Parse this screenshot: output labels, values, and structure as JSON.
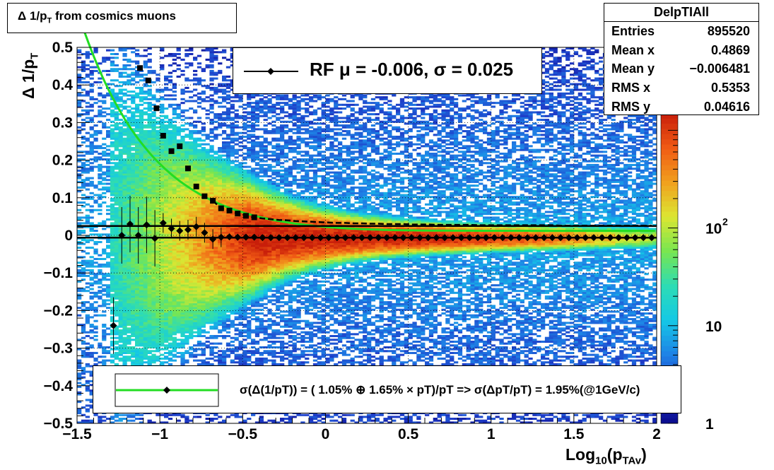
{
  "title": "Δ 1/p",
  "title_sub": "T",
  "title_tail": " from cosmics muons",
  "stats": {
    "name": "DelpTIAll",
    "rows": [
      {
        "label": "Entries",
        "value": "895520"
      },
      {
        "label": "Mean x",
        "value": "0.4869"
      },
      {
        "label": "Mean y",
        "value": "−0.006481"
      },
      {
        "label": "RMS x",
        "value": "0.5353"
      },
      {
        "label": "RMS y",
        "value": "0.04616"
      }
    ]
  },
  "rf_legend": "RF μ = -0.006, σ =   0.025",
  "fit_legend": "σ(Δ(1/pT)) = ( 1.05% ⊕  1.65% × pT)/pT => σ(ΔpT/pT) =  1.95%(@1GeV/c)",
  "xlabel_main": "Log",
  "xlabel_sub1": "10",
  "xlabel_mid": "(p",
  "xlabel_sub2": "TAv",
  "xlabel_end": ")",
  "ylabel_main": "Δ 1/p",
  "ylabel_sub": "T",
  "colors": {
    "fit_curve": "#22dd22",
    "markers": "#000000",
    "palette": [
      "#0a0a8c",
      "#1e3cc8",
      "#1e82e6",
      "#14c8e6",
      "#2ddcb4",
      "#78e650",
      "#dce632",
      "#f0a01e",
      "#f05a14",
      "#c81e0a"
    ]
  },
  "chart_data": {
    "type": "heatmap",
    "xlim": [
      -1.5,
      2.0
    ],
    "ylim": [
      -0.5,
      0.5
    ],
    "x_ticks": [
      "−1.5",
      "−1",
      "−0.5",
      "0",
      "0.5",
      "1",
      "1.5",
      "2"
    ],
    "y_ticks": [
      "−0.5",
      "−0.4",
      "−0.3",
      "−0.2",
      "−0.1",
      "0",
      "0.1",
      "0.2",
      "0.3",
      "0.4",
      "0.5"
    ],
    "z_scale": "log",
    "zlim": [
      1,
      1500
    ],
    "z_ticks": [
      "1",
      "10",
      "10^2"
    ],
    "grid": true,
    "rms_profile": {
      "marker": "square",
      "x": [
        -1.12,
        -1.07,
        -1.02,
        -0.98,
        -0.93,
        -0.88,
        -0.83,
        -0.78,
        -0.73,
        -0.68,
        -0.63,
        -0.58,
        -0.53,
        -0.48,
        -0.43,
        -0.38,
        -0.33,
        -0.28,
        -0.23,
        -0.18,
        -0.13,
        -0.08,
        -0.03,
        0.02,
        0.07,
        0.12,
        0.17,
        0.22,
        0.27,
        0.32,
        0.37,
        0.42,
        0.47,
        0.52,
        0.57,
        0.62,
        0.67,
        0.72,
        0.77,
        0.82,
        0.87,
        0.92,
        0.97,
        1.02,
        1.07,
        1.12,
        1.17,
        1.22,
        1.27,
        1.32,
        1.37,
        1.42,
        1.47,
        1.52,
        1.57,
        1.62,
        1.67,
        1.72,
        1.77,
        1.82,
        1.87,
        1.92,
        1.97
      ],
      "y": [
        0.445,
        0.412,
        0.338,
        0.265,
        0.224,
        0.237,
        0.178,
        0.13,
        0.104,
        0.092,
        0.072,
        0.066,
        0.058,
        0.052,
        0.048,
        0.045,
        0.043,
        0.041,
        0.04,
        0.038,
        0.037,
        0.036,
        0.035,
        0.034,
        0.033,
        0.033,
        0.032,
        0.032,
        0.031,
        0.031,
        0.03,
        0.03,
        0.03,
        0.029,
        0.029,
        0.029,
        0.028,
        0.028,
        0.028,
        0.028,
        0.028,
        0.027,
        0.027,
        0.027,
        0.027,
        0.027,
        0.027,
        0.027,
        0.027,
        0.027,
        0.027,
        0.026,
        0.026,
        0.026,
        0.026,
        0.026,
        0.026,
        0.026,
        0.026,
        0.026,
        0.026,
        0.026,
        0.026
      ]
    },
    "mean_profile": {
      "marker": "diamond",
      "x": [
        -1.28,
        -1.23,
        -1.18,
        -1.13,
        -1.08,
        -1.03,
        -0.98,
        -0.93,
        -0.88,
        -0.83,
        -0.78,
        -0.73,
        -0.68,
        -0.63,
        -0.58,
        -0.53,
        -0.48,
        -0.43,
        -0.38,
        -0.33,
        -0.28,
        -0.23,
        -0.18,
        -0.13,
        -0.08,
        -0.03,
        0.02,
        0.07,
        0.12,
        0.17,
        0.22,
        0.27,
        0.32,
        0.37,
        0.42,
        0.47,
        0.52,
        0.57,
        0.62,
        0.67,
        0.72,
        0.77,
        0.82,
        0.87,
        0.92,
        0.97,
        1.02,
        1.07,
        1.12,
        1.17,
        1.22,
        1.27,
        1.32,
        1.37,
        1.42,
        1.47,
        1.52,
        1.57,
        1.62,
        1.67,
        1.72,
        1.77,
        1.82,
        1.87,
        1.92,
        1.97
      ],
      "y": [
        -0.24,
        0.0,
        0.03,
        0.0,
        0.028,
        -0.008,
        0.033,
        0.018,
        0.012,
        0.015,
        0.023,
        0.007,
        -0.01,
        -0.005,
        -0.004,
        -0.005,
        -0.005,
        -0.005,
        -0.006,
        -0.006,
        -0.006,
        -0.006,
        -0.006,
        -0.006,
        -0.006,
        -0.006,
        -0.006,
        -0.006,
        -0.006,
        -0.006,
        -0.006,
        -0.006,
        -0.006,
        -0.006,
        -0.006,
        -0.006,
        -0.006,
        -0.006,
        -0.006,
        -0.006,
        -0.006,
        -0.006,
        -0.006,
        -0.006,
        -0.006,
        -0.006,
        -0.006,
        -0.006,
        -0.006,
        -0.006,
        -0.006,
        -0.006,
        -0.006,
        -0.006,
        -0.006,
        -0.006,
        -0.006,
        -0.006,
        -0.006,
        -0.006,
        -0.006,
        -0.006,
        -0.006,
        -0.006,
        -0.006,
        -0.006
      ]
    },
    "fit_curve": {
      "a": 0.0105,
      "b": 0.0165
    },
    "rf_sigma_line": 0.025,
    "rf_mean_line": -0.006
  }
}
